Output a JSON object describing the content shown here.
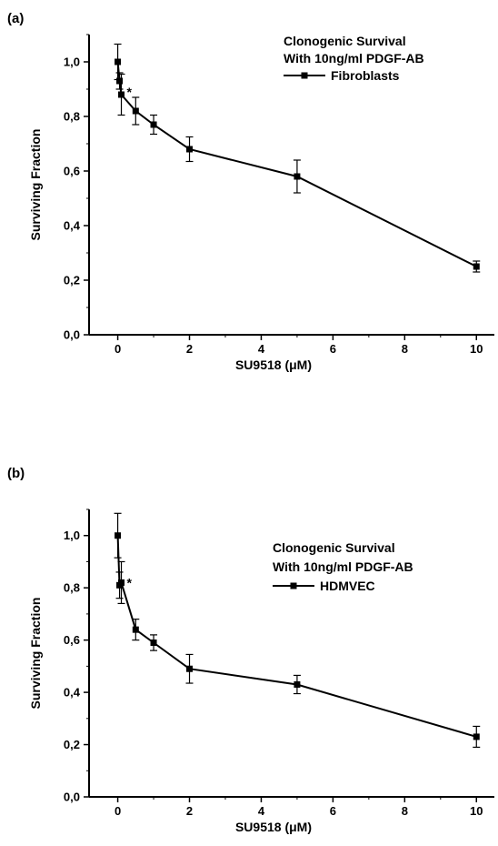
{
  "chart_data": [
    {
      "panel_label": "(a)",
      "type": "line",
      "xlabel": "SU9518 (μM)",
      "ylabel": "Surviving Fraction",
      "xlim": [
        -0.8,
        10.5
      ],
      "ylim": [
        0.0,
        1.1
      ],
      "xticks": [
        0,
        2,
        4,
        6,
        8,
        10
      ],
      "xtick_labels": [
        "0",
        "2",
        "4",
        "6",
        "8",
        "10"
      ],
      "yticks": [
        0.0,
        0.2,
        0.4,
        0.6,
        0.8,
        1.0
      ],
      "ytick_labels": [
        "0,0",
        "0,2",
        "0,4",
        "0,6",
        "0,8",
        "1,0"
      ],
      "legend": {
        "title_lines": [
          "Clonogenic Survival",
          "With 10ng/ml PDGF-AB"
        ],
        "placement": "top-right"
      },
      "annotations": [
        {
          "text": "*",
          "x": 0.1,
          "y": 0.88
        }
      ],
      "grid": false,
      "series": [
        {
          "name": "Fibroblasts",
          "marker": "square",
          "x": [
            0,
            0.05,
            0.1,
            0.5,
            1,
            2,
            5,
            10
          ],
          "y": [
            1.0,
            0.93,
            0.88,
            0.82,
            0.77,
            0.68,
            0.58,
            0.25
          ],
          "err": [
            0.065,
            0.03,
            0.075,
            0.05,
            0.035,
            0.045,
            0.06,
            0.02
          ]
        }
      ]
    },
    {
      "panel_label": "(b)",
      "type": "line",
      "xlabel": "SU9518 (μM)",
      "ylabel": "Surviving Fraction",
      "xlim": [
        -0.8,
        10.5
      ],
      "ylim": [
        0.0,
        1.1
      ],
      "xticks": [
        0,
        2,
        4,
        6,
        8,
        10
      ],
      "xtick_labels": [
        "0",
        "2",
        "4",
        "6",
        "8",
        "10"
      ],
      "yticks": [
        0.0,
        0.2,
        0.4,
        0.6,
        0.8,
        1.0
      ],
      "ytick_labels": [
        "0,0",
        "0,2",
        "0,4",
        "0,6",
        "0,8",
        "1,0"
      ],
      "legend": {
        "title_lines": [
          "Clonogenic Survival",
          "With 10ng/ml PDGF-AB"
        ],
        "placement": "right"
      },
      "annotations": [
        {
          "text": "*",
          "x": 0.1,
          "y": 0.81
        }
      ],
      "grid": false,
      "series": [
        {
          "name": "HDMVEC",
          "marker": "square",
          "x": [
            0,
            0.05,
            0.1,
            0.5,
            1,
            2,
            5,
            10
          ],
          "y": [
            1.0,
            0.81,
            0.82,
            0.64,
            0.59,
            0.49,
            0.43,
            0.23
          ],
          "err": [
            0.085,
            0.05,
            0.08,
            0.04,
            0.03,
            0.055,
            0.035,
            0.04
          ]
        }
      ]
    }
  ]
}
